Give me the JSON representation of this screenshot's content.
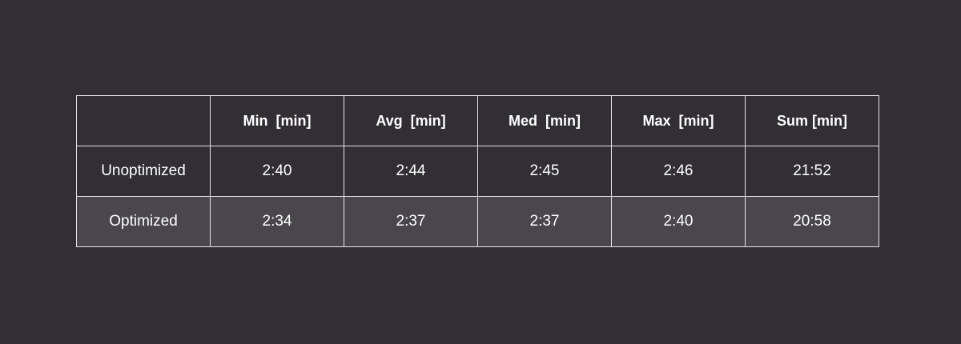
{
  "table": {
    "headers": [
      "",
      "Min  [min]",
      "Avg  [min]",
      "Med  [min]",
      "Max  [min]",
      "Sum [min]"
    ],
    "rows": [
      {
        "label": "Unoptimized",
        "values": [
          "2:40",
          "2:44",
          "2:45",
          "2:46",
          "21:52"
        ]
      },
      {
        "label": "Optimized",
        "values": [
          "2:34",
          "2:37",
          "2:37",
          "2:40",
          "20:58"
        ]
      }
    ]
  },
  "colors": {
    "background": "#322e36",
    "highlight_row": "#4a464e",
    "border": "#e6e4e8",
    "text": "#ffffff"
  }
}
